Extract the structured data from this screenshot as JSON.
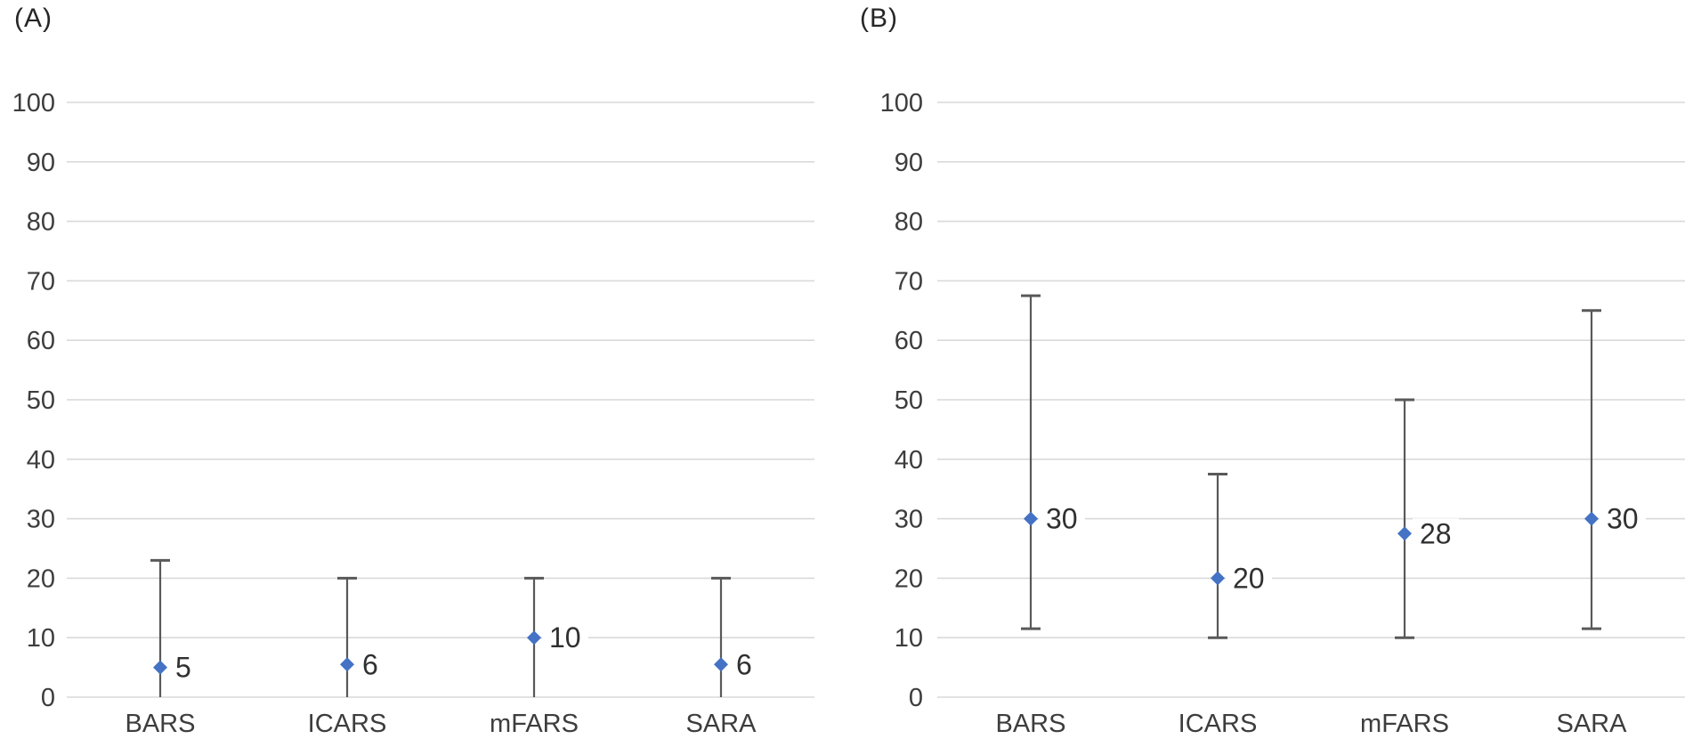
{
  "figure": {
    "background": "#ffffff",
    "panels": [
      {
        "label": "(A)"
      },
      {
        "label": "(B)"
      }
    ]
  },
  "chart_data": [
    {
      "type": "scatter",
      "panel_label": "(A)",
      "categories": [
        "BARS",
        "ICARS",
        "mFARS",
        "SARA"
      ],
      "series": [
        {
          "name": "panel-a-scores",
          "values": [
            5,
            5.5,
            10,
            5.5
          ],
          "point_labels": [
            "5",
            "6",
            "10",
            "6"
          ],
          "error_low": [
            0,
            0,
            0,
            0
          ],
          "error_high": [
            23,
            20,
            20,
            20
          ]
        }
      ],
      "ylim": [
        0,
        100
      ],
      "ytick_interval": 10,
      "yticks": [
        "0",
        "10",
        "20",
        "30",
        "40",
        "50",
        "60",
        "70",
        "80",
        "90",
        "100"
      ],
      "grid": true,
      "legend": "none",
      "marker": "diamond",
      "marker_color": "#4472C4",
      "errorbar_color": "#595959",
      "gridline_color": "#d9d9d9"
    },
    {
      "type": "scatter",
      "panel_label": "(B)",
      "categories": [
        "BARS",
        "ICARS",
        "mFARS",
        "SARA"
      ],
      "series": [
        {
          "name": "panel-b-scores",
          "values": [
            30,
            20,
            27.5,
            30
          ],
          "point_labels": [
            "30",
            "20",
            "28",
            "30"
          ],
          "error_low": [
            11.5,
            10,
            10,
            11.5
          ],
          "error_high": [
            67.5,
            37.5,
            50,
            65
          ]
        }
      ],
      "ylim": [
        0,
        100
      ],
      "ytick_interval": 10,
      "yticks": [
        "0",
        "10",
        "20",
        "30",
        "40",
        "50",
        "60",
        "70",
        "80",
        "90",
        "100"
      ],
      "grid": true,
      "legend": "none",
      "marker": "diamond",
      "marker_color": "#4472C4",
      "errorbar_color": "#595959",
      "gridline_color": "#d9d9d9"
    }
  ]
}
